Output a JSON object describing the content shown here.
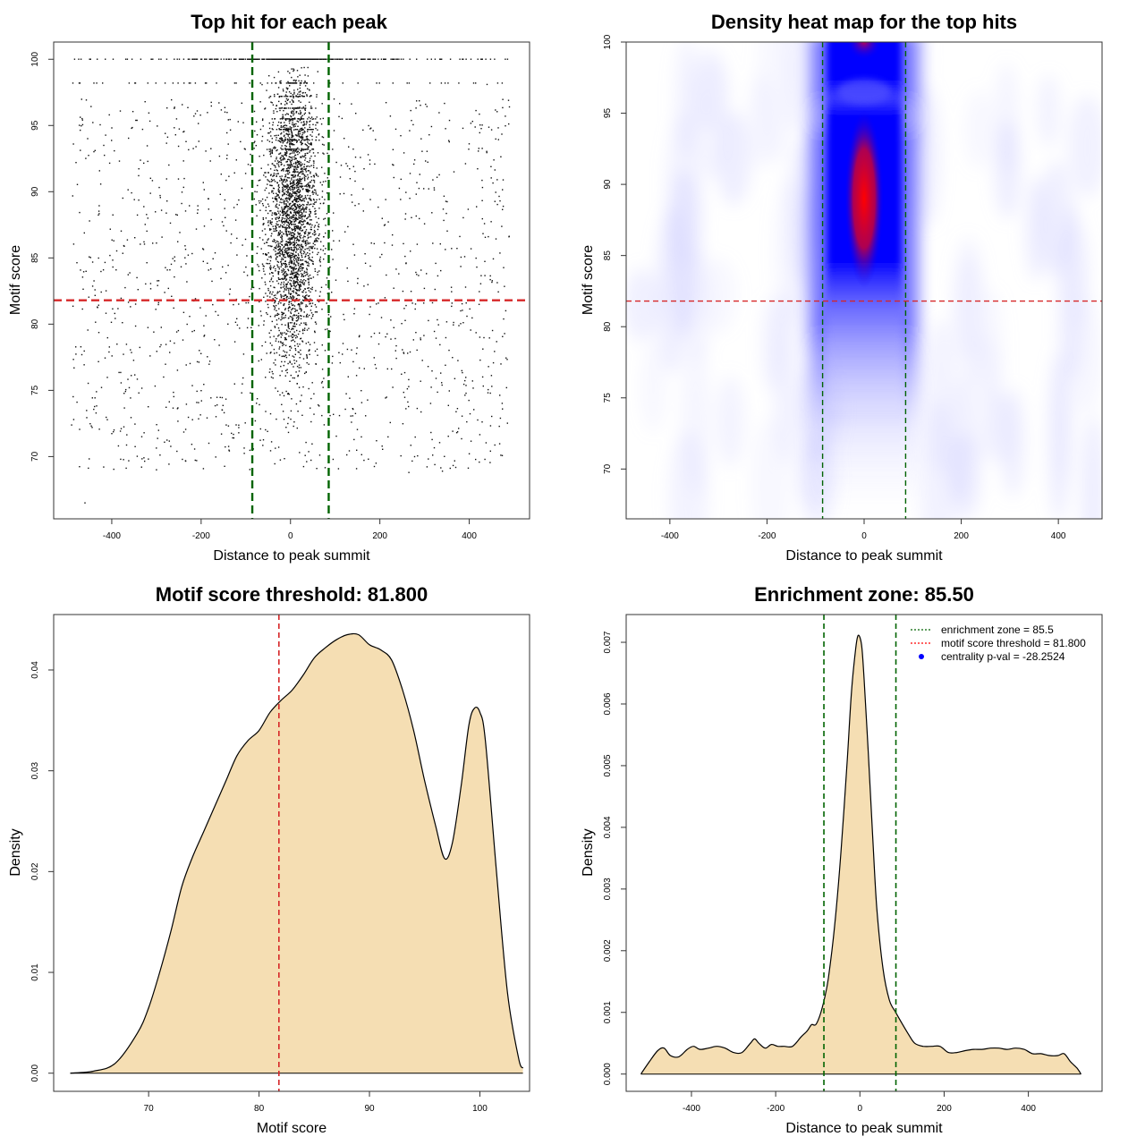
{
  "chart_data": [
    {
      "type": "scatter",
      "title": "Top hit for each peak",
      "xlabel": "Distance to peak summit",
      "ylabel": "Motif score",
      "xlim": [
        -530,
        535
      ],
      "ylim": [
        65.3,
        101.3
      ],
      "xticks": [
        -400,
        -200,
        0,
        200,
        400
      ],
      "xtick_labels": [
        "-400",
        "-200",
        "0",
        "200",
        "400"
      ],
      "yticks": [
        70,
        75,
        80,
        85,
        90,
        95,
        100
      ],
      "ytick_labels": [
        "70",
        "75",
        "80",
        "85",
        "90",
        "95",
        "100"
      ],
      "vlines": [
        {
          "x": -85.5,
          "color": "#006400"
        },
        {
          "x": 85.5,
          "color": "#006400"
        }
      ],
      "hlines": [
        {
          "y": 81.8,
          "color": "#d62728"
        }
      ],
      "points_description": "about 4000 top motif hits; dense central column within about +/-80 of summit, uniform sparse background from -500 to 500, score range about 66.5 to 100 with a saturated row at 100",
      "sample_points": [
        {
          "x": -460,
          "y": 66.5
        },
        {
          "x": -380,
          "y": 69.8
        },
        {
          "x": -300,
          "y": 69.0
        },
        {
          "x": -210,
          "y": 69.7
        },
        {
          "x": 265,
          "y": 68.8
        },
        {
          "x": 340,
          "y": 68.9
        },
        {
          "x": -480,
          "y": 92.2
        },
        {
          "x": 490,
          "y": 96.4
        },
        {
          "x": -440,
          "y": 98.2
        },
        {
          "x": 440,
          "y": 98.1
        },
        {
          "x": 0,
          "y": 100
        },
        {
          "x": 10,
          "y": 89.0
        },
        {
          "x": -20,
          "y": 86.0
        },
        {
          "x": 25,
          "y": 92.0
        },
        {
          "x": -5,
          "y": 80.0
        },
        {
          "x": 15,
          "y": 75.5
        }
      ]
    },
    {
      "type": "heatmap",
      "title": "Density heat map for the top hits",
      "xlabel": "Distance to peak summit",
      "ylabel": "Motif score",
      "xlim": [
        -490,
        490
      ],
      "ylim": [
        66.5,
        100
      ],
      "xticks": [
        -400,
        -200,
        0,
        200,
        400
      ],
      "xtick_labels": [
        "-400",
        "-200",
        "0",
        "200",
        "400"
      ],
      "yticks": [
        70,
        75,
        80,
        85,
        90,
        95,
        100
      ],
      "ytick_labels": [
        "70",
        "75",
        "80",
        "85",
        "90",
        "95",
        "100"
      ],
      "colormap": [
        "#ffffff",
        "#0000ff",
        "#ff0000"
      ],
      "hotspots": [
        {
          "x": 0,
          "y": 89.0,
          "intensity": "peak (red)"
        },
        {
          "x": 0,
          "y": 100,
          "intensity": "high (red-blue)"
        },
        {
          "x": 0,
          "y": 79.5,
          "intensity": "medium (blue)"
        }
      ],
      "vlines": [
        {
          "x": -85.5,
          "color": "#006400"
        },
        {
          "x": 85.5,
          "color": "#006400"
        }
      ],
      "hlines": [
        {
          "y": 81.8,
          "color": "#d62728"
        }
      ]
    },
    {
      "type": "area",
      "title": "Motif score threshold: 81.800",
      "xlabel": "Motif score",
      "ylabel": "Density",
      "xlim": [
        61.4,
        104.5
      ],
      "ylim": [
        -0.0018,
        0.0455
      ],
      "xticks": [
        70,
        80,
        90,
        100
      ],
      "xtick_labels": [
        "70",
        "80",
        "90",
        "100"
      ],
      "yticks": [
        0.0,
        0.01,
        0.02,
        0.03,
        0.04
      ],
      "ytick_labels": [
        "0.00",
        "0.01",
        "0.02",
        "0.03",
        "0.04"
      ],
      "fill_color": "#f5deb3",
      "vlines": [
        {
          "x": 81.8,
          "color": "#d62728"
        }
      ],
      "x": [
        62.9,
        65.0,
        67.0,
        69.0,
        70.0,
        71.0,
        72.0,
        73.0,
        74.0,
        75.0,
        76.0,
        77.0,
        78.0,
        79.0,
        80.0,
        81.0,
        82.0,
        83.0,
        84.0,
        85.0,
        86.0,
        87.0,
        88.0,
        89.0,
        90.0,
        91.0,
        92.0,
        93.0,
        94.0,
        95.0,
        96.0,
        96.8,
        97.5,
        98.3,
        99.0,
        99.5,
        100.0,
        100.5,
        101.5,
        102.5,
        103.5,
        103.9
      ],
      "y": [
        0.0,
        0.0002,
        0.001,
        0.004,
        0.0065,
        0.01,
        0.014,
        0.0185,
        0.0215,
        0.024,
        0.0265,
        0.029,
        0.0315,
        0.033,
        0.034,
        0.0358,
        0.037,
        0.038,
        0.0395,
        0.0412,
        0.0422,
        0.043,
        0.0435,
        0.0435,
        0.0425,
        0.042,
        0.041,
        0.038,
        0.034,
        0.029,
        0.0245,
        0.0213,
        0.0228,
        0.0285,
        0.0345,
        0.0362,
        0.0358,
        0.033,
        0.02,
        0.008,
        0.0015,
        0.0005
      ]
    },
    {
      "type": "area",
      "title": "Enrichment zone: 85.50",
      "xlabel": "Distance to peak summit",
      "ylabel": "Density",
      "xlim": [
        -555,
        575
      ],
      "ylim": [
        -0.00028,
        0.00745
      ],
      "xticks": [
        -400,
        -200,
        0,
        200,
        400
      ],
      "xtick_labels": [
        "-400",
        "-200",
        "0",
        "200",
        "400"
      ],
      "yticks": [
        0.0,
        0.001,
        0.002,
        0.003,
        0.004,
        0.005,
        0.006,
        0.007
      ],
      "ytick_labels": [
        "0.000",
        "0.001",
        "0.002",
        "0.003",
        "0.004",
        "0.005",
        "0.006",
        "0.007"
      ],
      "fill_color": "#f5deb3",
      "vlines": [
        {
          "x": -85.5,
          "color": "#006400"
        },
        {
          "x": 85.5,
          "color": "#006400"
        }
      ],
      "legend": [
        {
          "label": "enrichment zone = 85.5",
          "style": "dotted",
          "color": "#006400"
        },
        {
          "label": "motif score threshold = 81.800",
          "style": "dotted",
          "color": "#ff0000"
        },
        {
          "label": "centrality p-val = -28.2524",
          "style": "point",
          "color": "#0000ff"
        }
      ],
      "legend_position": "top-right",
      "x": [
        -520,
        -500,
        -480,
        -465,
        -450,
        -430,
        -410,
        -395,
        -380,
        -360,
        -340,
        -320,
        -300,
        -280,
        -260,
        -250,
        -240,
        -225,
        -210,
        -195,
        -180,
        -160,
        -140,
        -125,
        -115,
        -105,
        -95,
        -85,
        -75,
        -60,
        -45,
        -30,
        -20,
        -10,
        -5,
        0,
        5,
        10,
        20,
        30,
        40,
        55,
        70,
        85,
        100,
        115,
        130,
        150,
        170,
        190,
        210,
        230,
        250,
        270,
        290,
        310,
        330,
        350,
        370,
        390,
        410,
        430,
        450,
        470,
        485,
        500,
        515,
        525
      ],
      "y": [
        0.0,
        0.0002,
        0.00038,
        0.00042,
        0.0003,
        0.00028,
        0.0004,
        0.00045,
        0.0004,
        0.00042,
        0.00045,
        0.00042,
        0.00035,
        0.00035,
        0.0005,
        0.00057,
        0.0005,
        0.00042,
        0.00048,
        0.00045,
        0.00045,
        0.00045,
        0.0006,
        0.0007,
        0.0008,
        0.0008,
        0.00095,
        0.0012,
        0.00155,
        0.0024,
        0.0036,
        0.0051,
        0.0062,
        0.0069,
        0.0071,
        0.00708,
        0.0069,
        0.0064,
        0.0052,
        0.0039,
        0.0027,
        0.0017,
        0.0012,
        0.001,
        0.00082,
        0.00065,
        0.0005,
        0.00045,
        0.00045,
        0.00045,
        0.00035,
        0.00035,
        0.00038,
        0.0004,
        0.0004,
        0.00042,
        0.00042,
        0.0004,
        0.00042,
        0.0004,
        0.00033,
        0.00033,
        0.0003,
        0.0003,
        0.00033,
        0.0002,
        0.0001,
        0.0
      ]
    }
  ]
}
